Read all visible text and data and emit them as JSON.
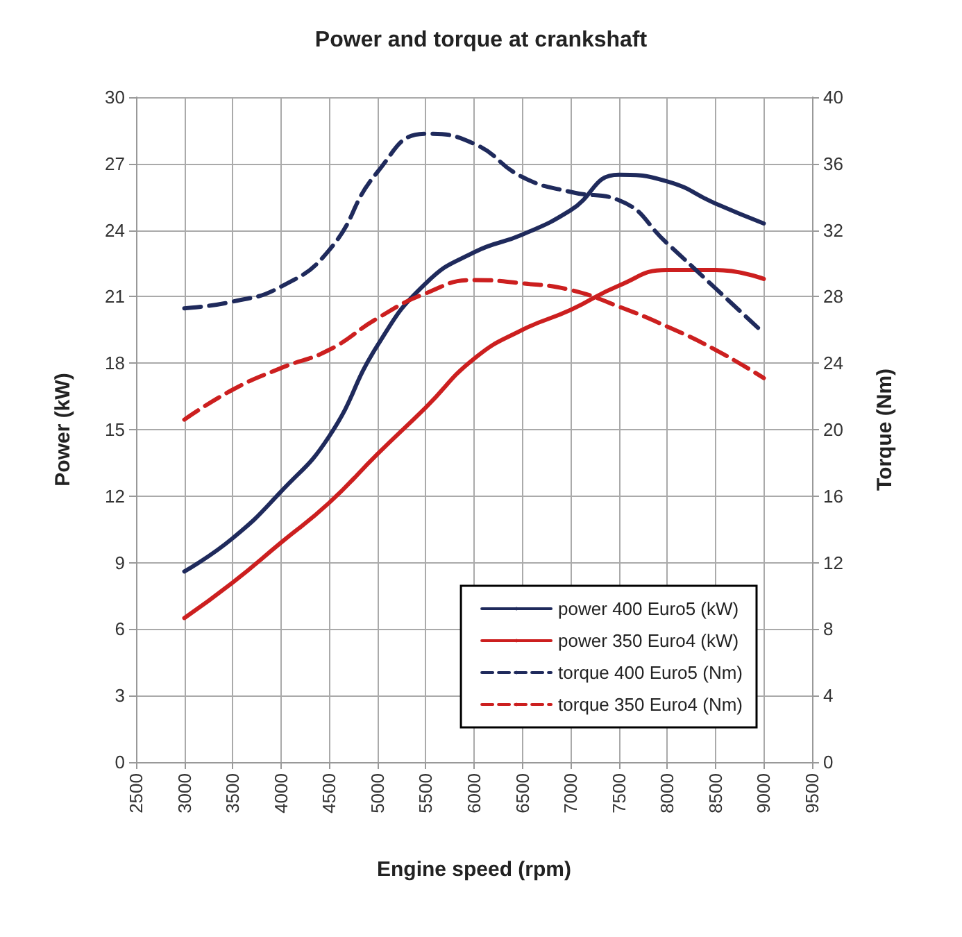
{
  "chart_data": {
    "type": "line",
    "title": "Power and torque at crankshaft",
    "xlabel": "Engine speed (rpm)",
    "ylabel": "Power (kW)",
    "y2label": "Torque (Nm)",
    "x": [
      3000,
      3500,
      4000,
      4500,
      5000,
      5500,
      6000,
      6500,
      7000,
      7500,
      8000,
      8500,
      9000
    ],
    "series": [
      {
        "name": "power 400 Euro5 (kW)",
        "color": "#1f2a5c",
        "line_style": "solid",
        "values": [
          8.6,
          10.1,
          12.2,
          14.7,
          18.8,
          21.6,
          23.0,
          23.8,
          24.9,
          26.5,
          26.2,
          25.2,
          24.3
        ]
      },
      {
        "name": "power 350 Euro4 (kW)",
        "color": "#cc1f1f",
        "line_style": "solid",
        "values": [
          6.5,
          8.1,
          9.9,
          11.7,
          13.9,
          16.0,
          18.2,
          19.5,
          20.4,
          21.5,
          22.2,
          22.2,
          21.8
        ]
      },
      {
        "name": "torque 400 Euro5 (Nm)",
        "color": "#1f2a5c",
        "line_style": "dashed",
        "axis": "y2",
        "values": [
          27.3,
          27.7,
          28.6,
          30.8,
          35.5,
          37.8,
          37.2,
          35.2,
          34.3,
          33.8,
          31.2,
          28.5,
          25.8
        ]
      },
      {
        "name": "torque 350 Euro4 (Nm)",
        "color": "#cc1f1f",
        "line_style": "dashed",
        "axis": "y2",
        "values": [
          20.6,
          22.4,
          23.7,
          24.8,
          26.7,
          28.2,
          29.0,
          28.8,
          28.4,
          27.4,
          26.2,
          24.8,
          23.1
        ]
      }
    ],
    "xlim": [
      2500,
      9500
    ],
    "xticks": [
      2500,
      3000,
      3500,
      4000,
      4500,
      5000,
      5500,
      6000,
      6500,
      7000,
      7500,
      8000,
      8500,
      9000,
      9500
    ],
    "ylim": [
      0,
      30
    ],
    "yticks": [
      0,
      3,
      6,
      9,
      12,
      15,
      18,
      21,
      24,
      27,
      30
    ],
    "y2lim": [
      0,
      40
    ],
    "y2ticks": [
      0,
      4,
      8,
      12,
      16,
      20,
      24,
      28,
      32,
      36,
      40
    ],
    "grid": true,
    "legend": "bottom right",
    "marker": "none"
  }
}
